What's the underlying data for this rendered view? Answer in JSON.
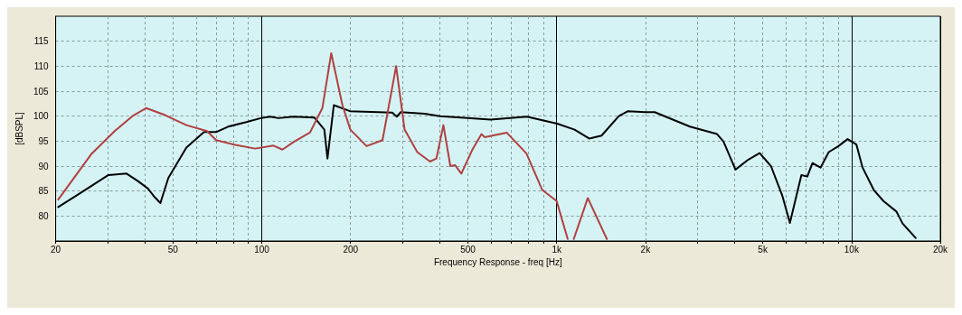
{
  "chart_data": {
    "type": "line",
    "xlabel": "Frequency Response - freq [Hz]",
    "ylabel": "[dBSPL]",
    "log": "x",
    "grid": true,
    "xlim": [
      20,
      20000
    ],
    "ylim": [
      75,
      120
    ],
    "xticks": [
      20,
      {
        "value": 30,
        "label": null
      },
      {
        "value": 40,
        "label": null
      },
      50,
      {
        "value": 60,
        "label": null
      },
      {
        "value": 70,
        "label": null
      },
      {
        "value": 80,
        "label": null
      },
      {
        "value": 90,
        "label": null
      },
      100,
      200,
      {
        "value": 300,
        "label": null
      },
      {
        "value": 400,
        "label": null
      },
      500,
      {
        "value": 600,
        "label": null
      },
      {
        "value": 700,
        "label": null
      },
      {
        "value": 800,
        "label": null
      },
      {
        "value": 900,
        "label": null
      },
      {
        "value": 1000,
        "label": "1k"
      },
      {
        "value": 2000,
        "label": "2k"
      },
      {
        "value": 3000,
        "label": null
      },
      {
        "value": 4000,
        "label": null
      },
      {
        "value": 5000,
        "label": "5k"
      },
      {
        "value": 6000,
        "label": null
      },
      {
        "value": 7000,
        "label": null
      },
      {
        "value": 8000,
        "label": null
      },
      {
        "value": 9000,
        "label": null
      },
      {
        "value": 10000,
        "label": "10k"
      },
      {
        "value": 20000,
        "label": "20k"
      }
    ],
    "yticks": [
      80,
      85,
      90,
      95,
      100,
      105,
      110,
      115
    ],
    "series": [
      {
        "color": "#000000",
        "x": [
          20.4,
          23.4,
          30.2,
          34.8,
          38,
          41.1,
          43,
          45.3,
          48.2,
          55.5,
          63.7,
          70,
          76.9,
          88.6,
          99.3,
          106.6,
          114,
          128,
          151,
          163,
          167,
          175.5,
          199,
          277,
          287,
          296,
          357,
          402,
          474,
          597,
          792,
          1004,
          1150,
          1292,
          1420,
          1625,
          1745,
          2000,
          2150,
          2830,
          3500,
          3680,
          4040,
          4470,
          4880,
          5330,
          5830,
          6180,
          6760,
          7080,
          7370,
          7850,
          8370,
          9030,
          9700,
          10390,
          10900,
          11900,
          12830,
          14200,
          14900,
          16500
        ],
        "values": [
          81.8,
          84.0,
          88.2,
          88.5,
          87.0,
          85.5,
          84.0,
          82.6,
          87.6,
          93.7,
          96.8,
          96.8,
          97.9,
          98.8,
          99.6,
          99.9,
          99.6,
          99.9,
          99.7,
          97.3,
          91.5,
          102.2,
          101.0,
          100.7,
          99.9,
          100.8,
          100.5,
          100.0,
          99.7,
          99.3,
          99.9,
          98.5,
          97.3,
          95.5,
          96.1,
          100.0,
          101.0,
          100.8,
          100.8,
          97.9,
          96.4,
          94.9,
          89.3,
          91.3,
          92.6,
          90.0,
          84.0,
          78.6,
          88.2,
          87.9,
          90.6,
          89.7,
          92.8,
          94.0,
          95.4,
          94.3,
          89.7,
          85.2,
          83.0,
          80.9,
          78.5,
          75.6
        ]
      },
      {
        "color": "#b04040",
        "x": [
          20.4,
          26.5,
          31.7,
          36.4,
          40.5,
          47,
          55.5,
          65.2,
          70,
          80.5,
          95,
          109.6,
          117.5,
          128.8,
          145.6,
          160.5,
          172,
          187.7,
          199.7,
          226.6,
          256.7,
          285.5,
          305,
          336.7,
          372,
          391,
          413,
          436,
          452,
          475,
          519,
          556,
          570,
          677,
          790,
          894,
          1000,
          1090,
          1115,
          1143,
          1275,
          1480
        ],
        "values": [
          83.3,
          92.5,
          97.0,
          100.0,
          101.6,
          100.2,
          98.2,
          97.0,
          95.2,
          94.3,
          93.5,
          94.1,
          93.3,
          94.9,
          96.7,
          101.6,
          112.6,
          102.2,
          97.3,
          94.0,
          95.2,
          110.0,
          97.3,
          92.8,
          90.9,
          91.5,
          98.2,
          90.0,
          90.2,
          88.5,
          93.4,
          96.4,
          95.8,
          96.7,
          92.5,
          85.2,
          83.0,
          75.4,
          null,
          75.4,
          83.6,
          75.4
        ]
      }
    ]
  }
}
